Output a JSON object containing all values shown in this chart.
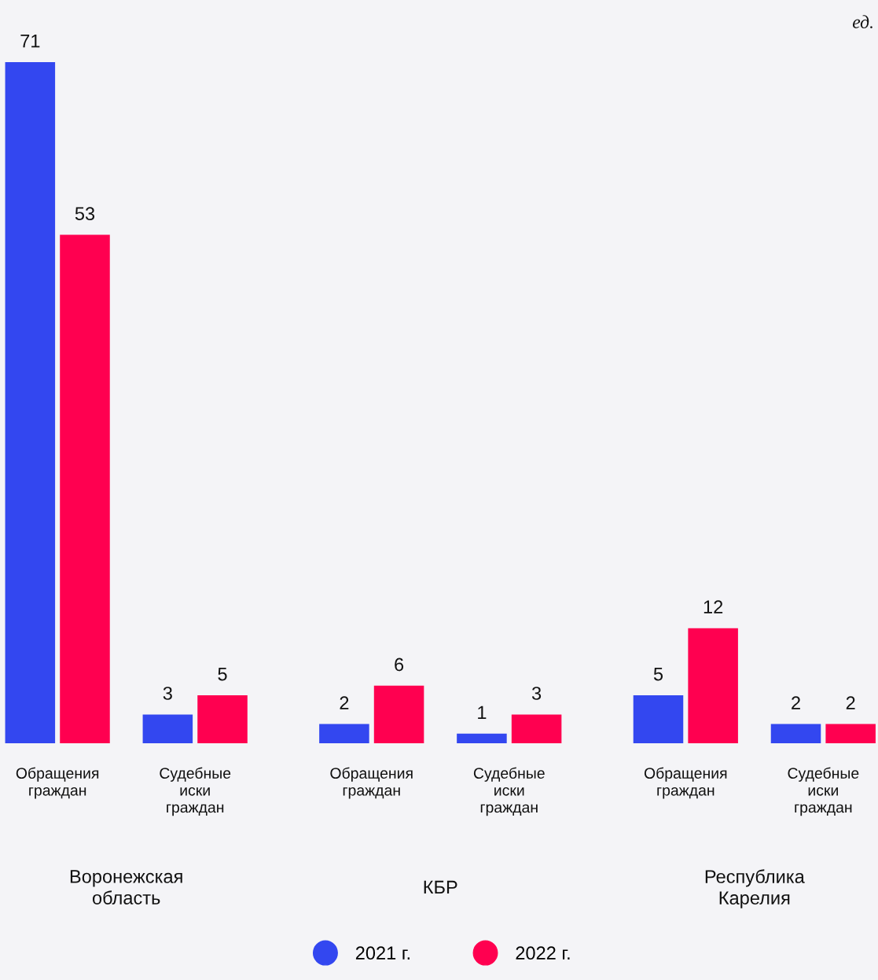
{
  "chart_data": {
    "type": "bar",
    "categories": [
      "Обращения граждан",
      "Судебные иски граждан",
      "Обращения граждан",
      "Судебные иски граждан",
      "Обращения граждан",
      "Судебные иски граждан"
    ],
    "series": [
      {
        "name": "2021 г.",
        "color": "#3347f0",
        "values": [
          71,
          3,
          2,
          1,
          5,
          2
        ]
      },
      {
        "name": "2022 г.",
        "color": "#ff0050",
        "values": [
          53,
          5,
          6,
          3,
          12,
          2
        ]
      }
    ],
    "annotations": [
      "Воронежская область",
      "КБР",
      "Республика Карелия",
      "ед."
    ],
    "data_labels": true,
    "legend": "bottom",
    "grid": false
  }
}
